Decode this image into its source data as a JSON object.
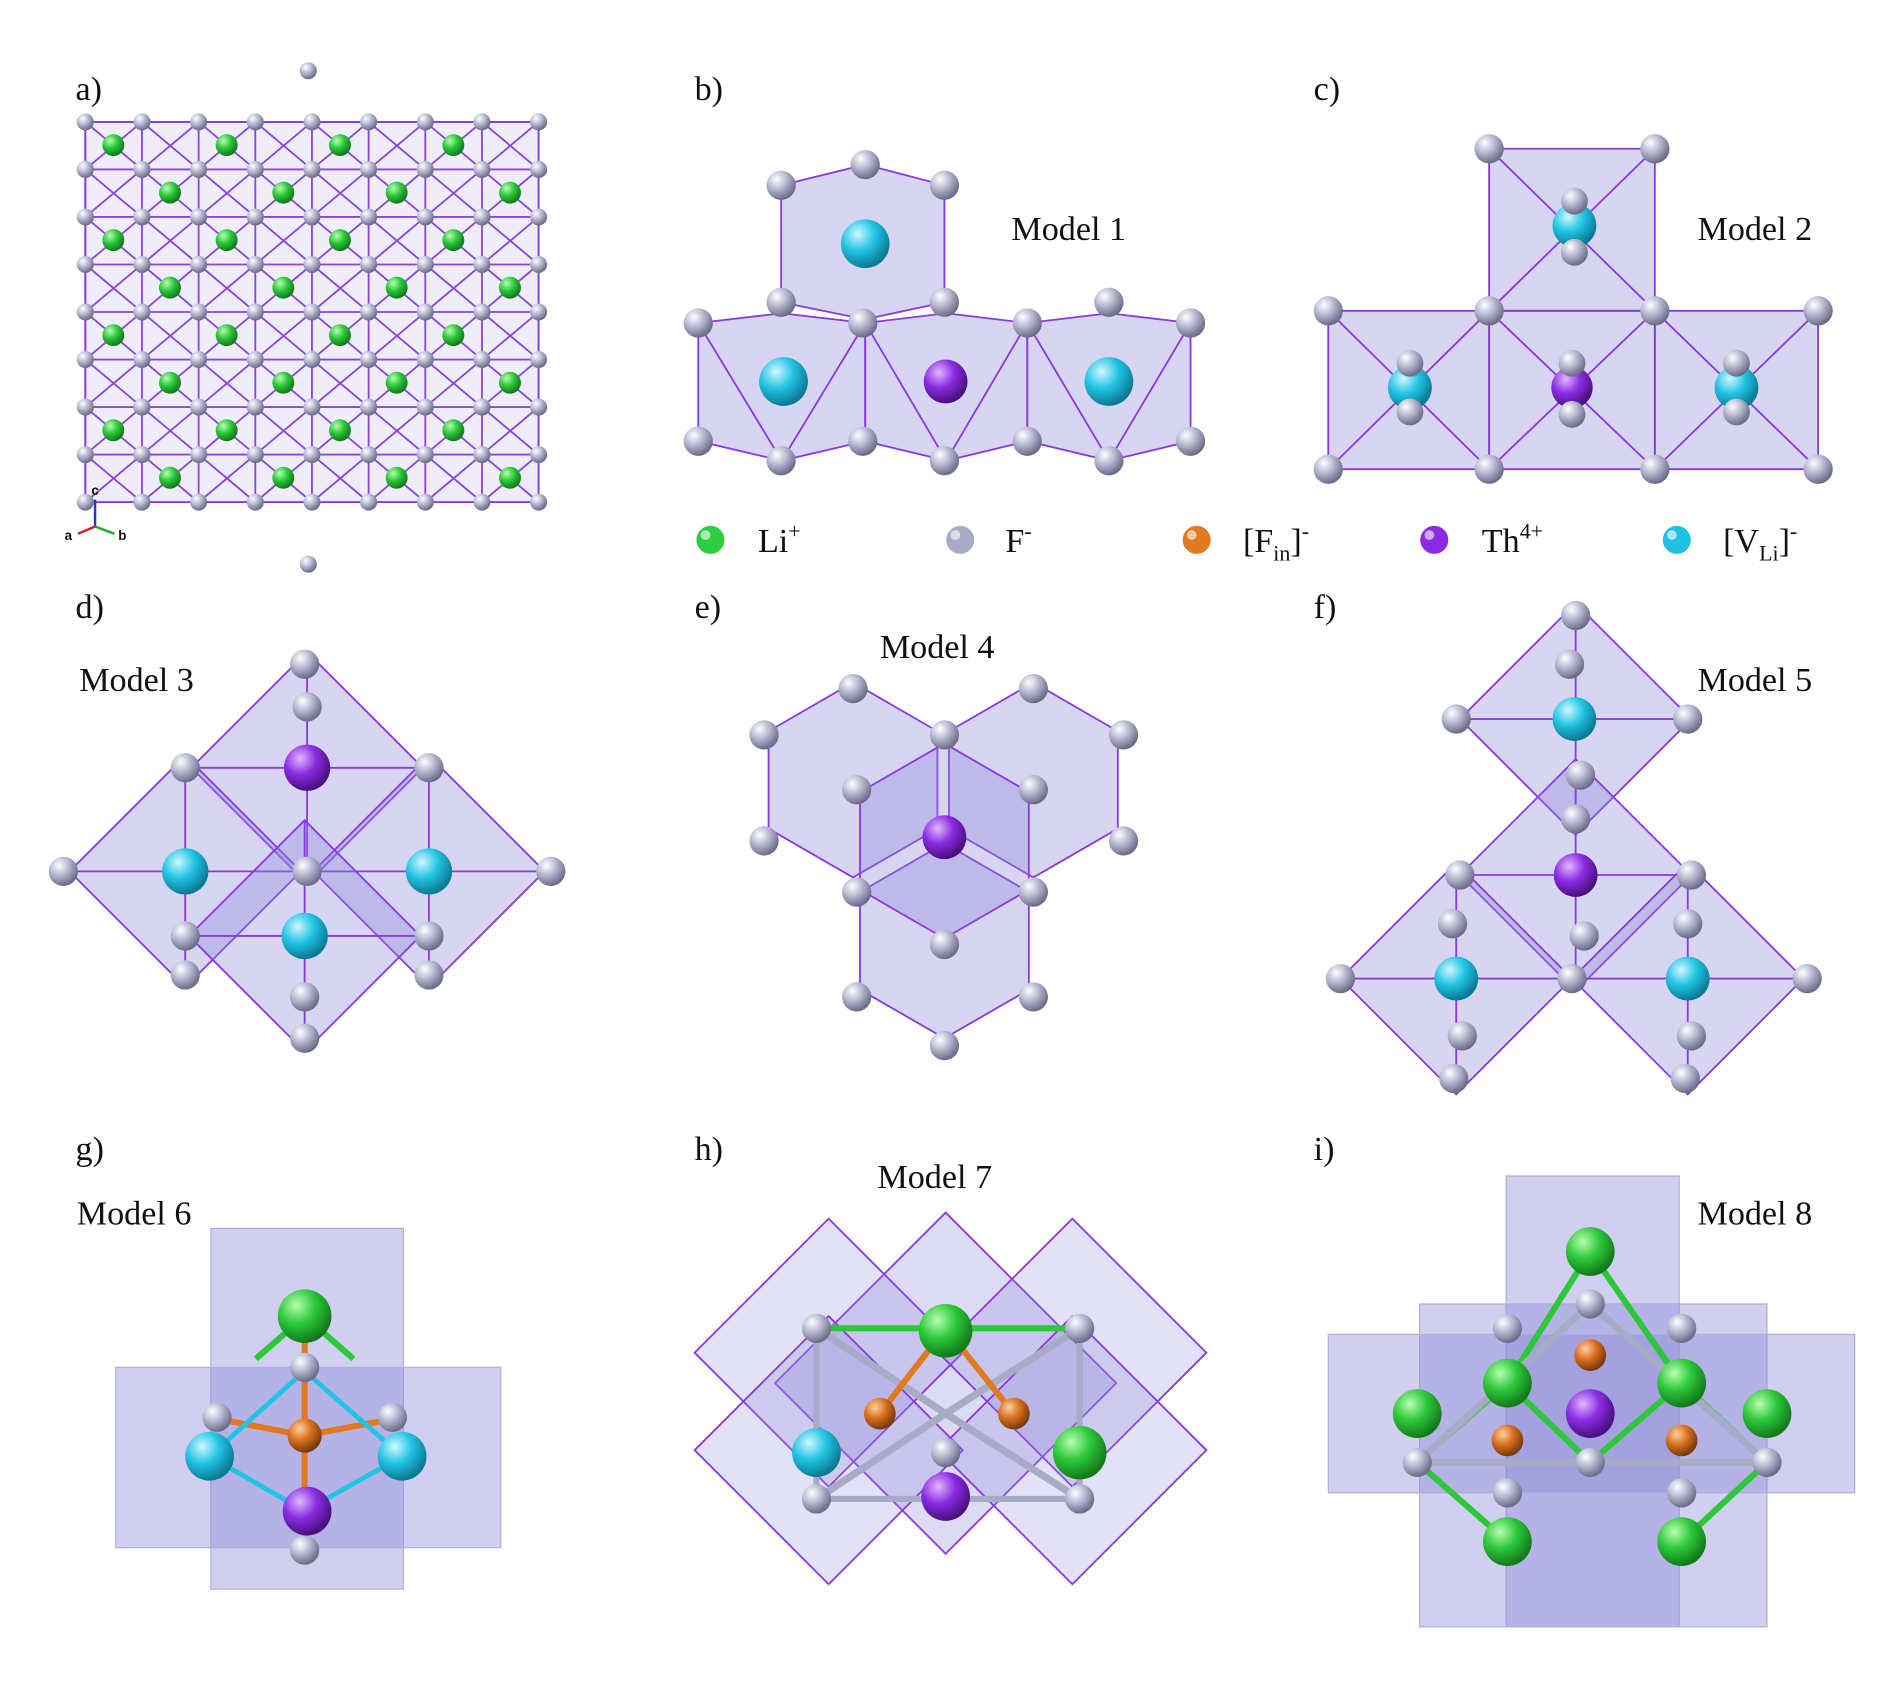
{
  "panels": [
    {
      "label": "a)"
    },
    {
      "label": "b)",
      "title": "Model 1"
    },
    {
      "label": "c)",
      "title": "Model 2"
    },
    {
      "label": "d)",
      "title": "Model 3"
    },
    {
      "label": "e)",
      "title": "Model 4"
    },
    {
      "label": "f)",
      "title": "Model 5"
    },
    {
      "label": "g)",
      "title": "Model 6"
    },
    {
      "label": "h)",
      "title": "Model 7"
    },
    {
      "label": "i)",
      "title": "Model 8"
    }
  ],
  "axes": [
    "c",
    "a",
    "b"
  ],
  "legend": [
    {
      "name": "Li",
      "sup": "+",
      "color": "#2ecc40"
    },
    {
      "name": "F",
      "sup": "-",
      "color": "#a8abc8"
    },
    {
      "name": "[F",
      "sub": "in",
      "close": "]",
      "sup": "-",
      "color": "#e07a20"
    },
    {
      "name": "Th",
      "sup": "4+",
      "color": "#8a2be2"
    },
    {
      "name": "[V",
      "sub": "Li",
      "close": "]",
      "sup": "-",
      "color": "#20c0e0"
    }
  ]
}
